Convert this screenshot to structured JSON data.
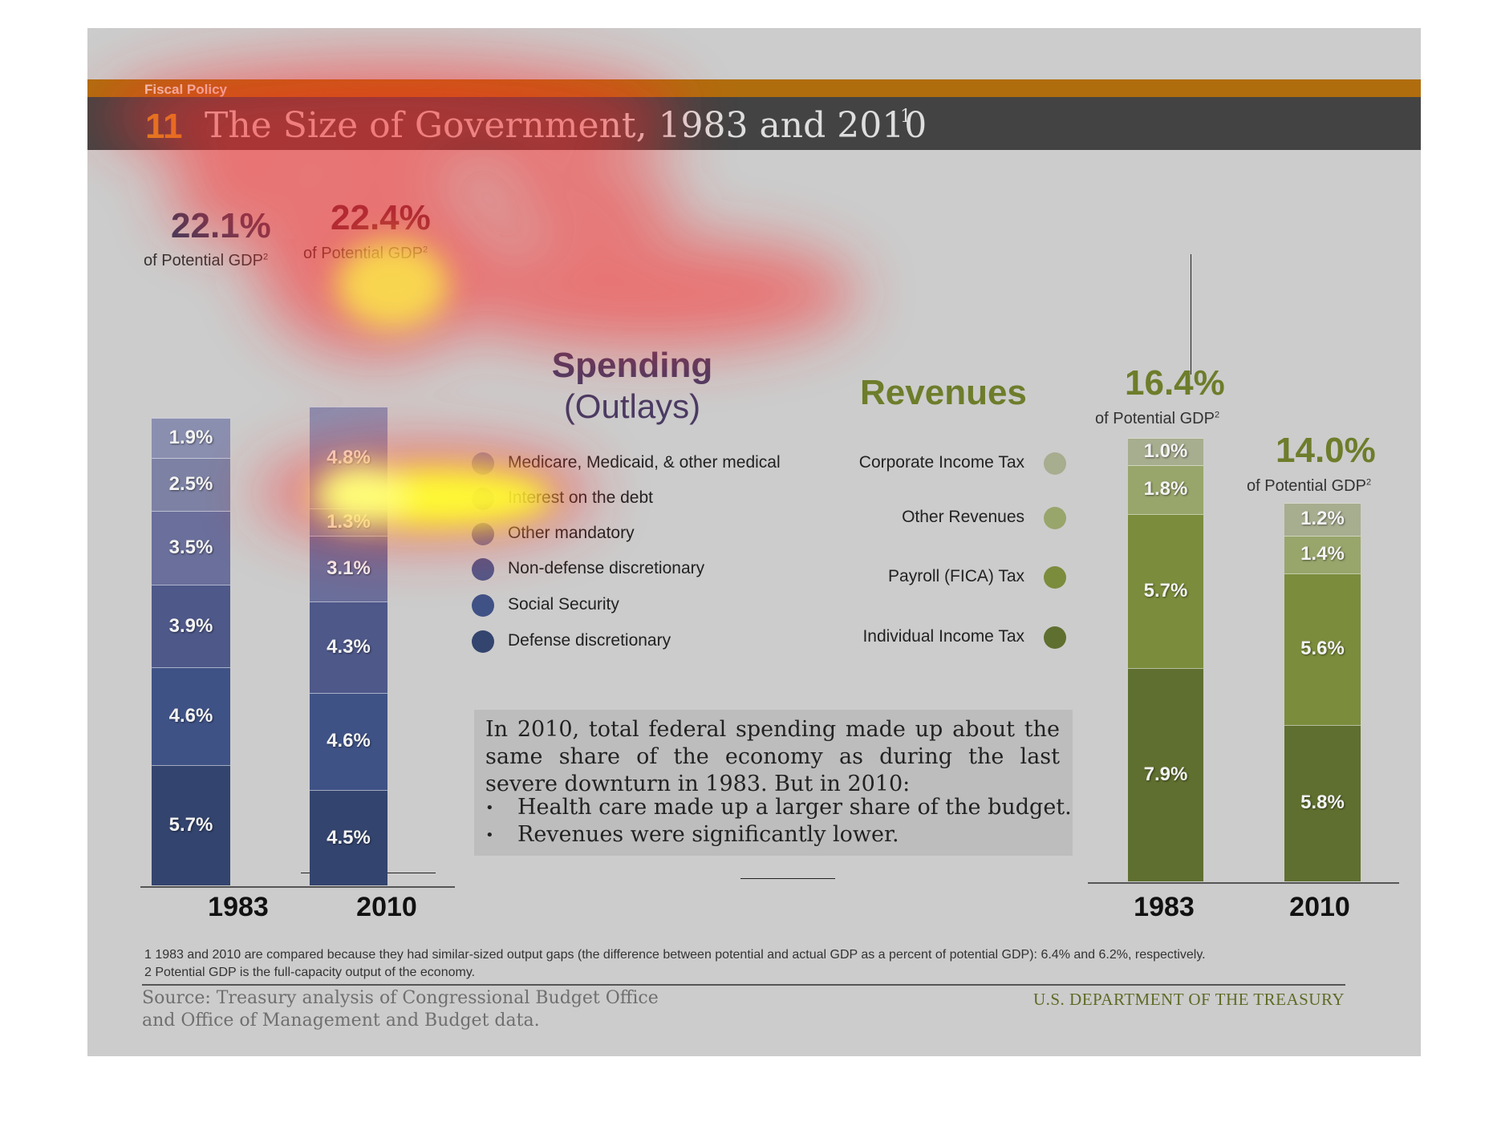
{
  "header": {
    "kicker": "Fiscal Policy",
    "number": "11",
    "title": "The Size of Government, 1983 and 2010",
    "title_sup": "1"
  },
  "spending": {
    "heading_line1": "Spending",
    "heading_line2": "(Outlays)",
    "total_1983": "22.1%",
    "total_2010": "22.4%",
    "gdp_label": "of Potential GDP",
    "gdp_sup": "2"
  },
  "revenues": {
    "heading": "Revenues",
    "total_1983": "16.4%",
    "total_2010": "14.0%",
    "gdp_label": "of Potential GDP",
    "gdp_sup": "2"
  },
  "years": {
    "a": "1983",
    "b": "2010"
  },
  "spending_legend": [
    {
      "label": "Medicare, Medicaid, & other medical",
      "color": "#8a8fb0"
    },
    {
      "label": "Interest on the debt",
      "color": "#7d82a4"
    },
    {
      "label": "Other mandatory",
      "color": "#6a6f9b"
    },
    {
      "label": "Non-defense discretionary",
      "color": "#4e5889"
    },
    {
      "label": "Social Security",
      "color": "#3f5286"
    },
    {
      "label": "Defense discretionary",
      "color": "#33446e"
    }
  ],
  "revenue_legend": [
    {
      "label": "Corporate Income Tax",
      "color": "#a7ad8f"
    },
    {
      "label": "Other Revenues",
      "color": "#98a56b"
    },
    {
      "label": "Payroll (FICA) Tax",
      "color": "#7b8c3c"
    },
    {
      "label": "Individual Income Tax",
      "color": "#5f6f2f"
    }
  ],
  "note": {
    "intro": "In 2010, total federal spending made up about the same share of the economy as during the last severe downturn in 1983. But in 2010:",
    "bullets": [
      "Health care made up a larger share of the budget.",
      "Revenues were significantly lower."
    ]
  },
  "footnotes": [
    "1 1983 and 2010 are compared because they had similar-sized output gaps (the difference between potential and actual GDP as a percent of potential GDP): 6.4% and 6.2%, respectively.",
    "2 Potential GDP is the full-capacity output of the economy."
  ],
  "source": {
    "line1": "Source: Treasury analysis of Congressional Budget Office",
    "line2": "and Office of Management and Budget data."
  },
  "agency": "U.S. DEPARTMENT OF THE TREASURY",
  "chart_data": [
    {
      "type": "bar",
      "stacked": true,
      "title": "Spending (Outlays)",
      "categories": [
        "1983",
        "2010"
      ],
      "unit": "% of Potential GDP",
      "totals": [
        22.1,
        22.4
      ],
      "series": [
        {
          "name": "Defense discretionary",
          "values": [
            5.7,
            4.5
          ],
          "labels": [
            "5.7%",
            "4.5%"
          ],
          "color": "#33446e"
        },
        {
          "name": "Social Security",
          "values": [
            4.6,
            4.6
          ],
          "labels": [
            "4.6%",
            "4.6%"
          ],
          "color": "#3f5286"
        },
        {
          "name": "Non-defense discretionary",
          "values": [
            3.9,
            4.3
          ],
          "labels": [
            "3.9%",
            "4.3%"
          ],
          "color": "#4e5889"
        },
        {
          "name": "Other mandatory",
          "values": [
            3.5,
            3.1
          ],
          "labels": [
            "3.5%",
            "3.1%"
          ],
          "color": "#6a6f9b"
        },
        {
          "name": "Interest on the debt",
          "values": [
            2.5,
            1.3
          ],
          "labels": [
            "2.5%",
            "1.3%"
          ],
          "color": "#7d82a4"
        },
        {
          "name": "Medicare, Medicaid, & other medical",
          "values": [
            1.9,
            4.8
          ],
          "labels": [
            "1.9%",
            "4.8%"
          ],
          "color": "#8a8fb0"
        }
      ]
    },
    {
      "type": "bar",
      "stacked": true,
      "title": "Revenues",
      "categories": [
        "1983",
        "2010"
      ],
      "unit": "% of Potential GDP",
      "totals": [
        16.4,
        14.0
      ],
      "series": [
        {
          "name": "Individual Income Tax",
          "values": [
            7.9,
            5.8
          ],
          "labels": [
            "7.9%",
            "5.8%"
          ],
          "color": "#5f6f2f"
        },
        {
          "name": "Payroll (FICA) Tax",
          "values": [
            5.7,
            5.6
          ],
          "labels": [
            "5.7%",
            "5.6%"
          ],
          "color": "#7b8c3c"
        },
        {
          "name": "Other Revenues",
          "values": [
            1.8,
            1.4
          ],
          "labels": [
            "1.8%",
            "1.4%"
          ],
          "color": "#98a56b"
        },
        {
          "name": "Corporate Income Tax",
          "values": [
            1.0,
            1.2
          ],
          "labels": [
            "1.0%",
            "1.2%"
          ],
          "color": "#a7ad8f"
        }
      ]
    }
  ]
}
